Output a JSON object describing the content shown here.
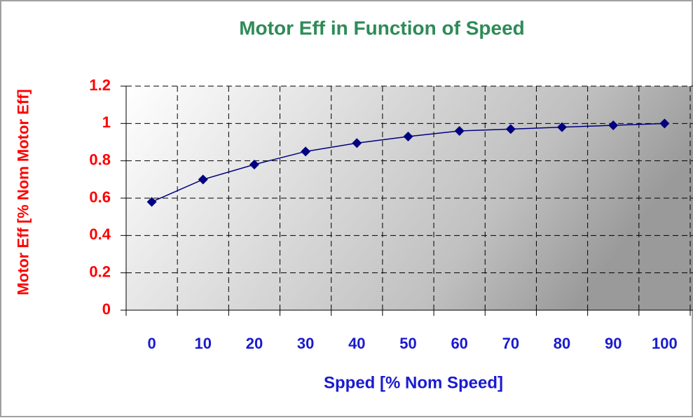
{
  "chart_data": {
    "type": "line",
    "title": "Motor Eff in Function of Speed",
    "x_label": "Spped [% Nom Speed]",
    "y_label": "Motor Eff [% Nom Motor Eff]",
    "categories": [
      0,
      10,
      20,
      30,
      40,
      50,
      60,
      70,
      80,
      90,
      100
    ],
    "series": [
      {
        "name": "Motor Eff",
        "color": "#000080",
        "values": [
          0.58,
          0.7,
          0.78,
          0.85,
          0.895,
          0.93,
          0.96,
          0.97,
          0.98,
          0.99,
          1.0
        ]
      }
    ],
    "ylim": [
      0,
      1.2
    ],
    "yticks": [
      0,
      0.2,
      0.4,
      0.6,
      0.8,
      1,
      1.2
    ],
    "grid": true
  }
}
